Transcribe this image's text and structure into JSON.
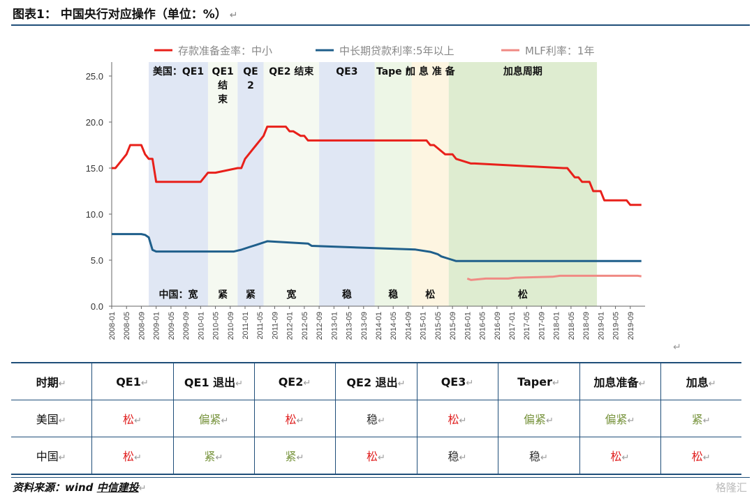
{
  "title": "图表1： 中国央行对应操作（单位：%）",
  "return_mark": "↵",
  "legend": [
    {
      "label": "存款准备金率：中小",
      "color": "#e8201a"
    },
    {
      "label": "中长期贷款利率:5年以上",
      "color": "#1f5f8b"
    },
    {
      "label": "MLF利率：1年",
      "color": "#f08a84"
    }
  ],
  "chart_data": {
    "type": "line",
    "ylim": [
      0,
      25
    ],
    "yticks": [
      "0.0",
      "5.0",
      "10.0",
      "15.0",
      "20.0",
      "25.0"
    ],
    "xticks": [
      "2008-01",
      "2008-05",
      "2008-09",
      "2009-01",
      "2009-05",
      "2009-09",
      "2010-01",
      "2010-05",
      "2010-09",
      "2011-01",
      "2011-05",
      "2011-09",
      "2012-01",
      "2012-05",
      "2012-09",
      "2013-01",
      "2013-05",
      "2013-09",
      "2014-01",
      "2014-05",
      "2014-09",
      "2015-01",
      "2015-05",
      "2015-09",
      "2016-01",
      "2016-05",
      "2016-09",
      "2017-01",
      "2017-05",
      "2017-09",
      "2018-01",
      "2018-05",
      "2018-09",
      "2019-01",
      "2019-05",
      "2019-09"
    ],
    "x_start": "2008-01",
    "x_end": "2019-12",
    "periods": [
      {
        "start": "2008-11",
        "end": "2010-03",
        "label_top": "美国：QE1",
        "label_bottom": "中国：宽",
        "color": "#dbe3f2"
      },
      {
        "start": "2010-03",
        "end": "2010-11",
        "label_top": "QE1 结 束",
        "label_bottom": "紧",
        "color": "#f3f8ee"
      },
      {
        "start": "2010-11",
        "end": "2011-06",
        "label_top": "QE 2",
        "label_bottom": "紧",
        "color": "#dbe3f2"
      },
      {
        "start": "2011-06",
        "end": "2012-09",
        "label_top": "QE2 结束",
        "label_bottom": "宽",
        "color": "#f3f8ee"
      },
      {
        "start": "2012-09",
        "end": "2013-12",
        "label_top": "QE3",
        "label_bottom": "稳",
        "color": "#dbe3f2"
      },
      {
        "start": "2013-12",
        "end": "2014-10",
        "label_top": "Tape r",
        "label_bottom": "稳",
        "color": "#eaf5e2"
      },
      {
        "start": "2014-10",
        "end": "2015-08",
        "label_top": "加 息 准 备",
        "label_bottom": "松",
        "color": "#fdf3dc"
      },
      {
        "start": "2015-08",
        "end": "2018-12",
        "label_top": "加息周期",
        "label_bottom": "松",
        "color": "#d8e9c8"
      }
    ],
    "series": [
      {
        "name": "存款准备金率：中小",
        "color": "#e8201a",
        "x": [
          "2008-01",
          "2008-02",
          "2008-03",
          "2008-04",
          "2008-05",
          "2008-06",
          "2008-07",
          "2008-08",
          "2008-09",
          "2008-10",
          "2008-11",
          "2008-12",
          "2009-01",
          "2010-01",
          "2010-02",
          "2010-03",
          "2010-05",
          "2010-11",
          "2010-12",
          "2011-01",
          "2011-02",
          "2011-03",
          "2011-04",
          "2011-05",
          "2011-06",
          "2011-07",
          "2011-11",
          "2011-12",
          "2012-01",
          "2012-02",
          "2012-04",
          "2012-05",
          "2012-06",
          "2015-01",
          "2015-02",
          "2015-03",
          "2015-04",
          "2015-07",
          "2015-08",
          "2015-09",
          "2015-10",
          "2016-02",
          "2016-03",
          "2018-03",
          "2018-04",
          "2018-06",
          "2018-07",
          "2018-08",
          "2018-10",
          "2018-11",
          "2019-01",
          "2019-02",
          "2019-08",
          "2019-09",
          "2019-12"
        ],
        "y": [
          15,
          15,
          15.5,
          16,
          16.5,
          17.5,
          17.5,
          17.5,
          17.5,
          16.5,
          16,
          16,
          13.5,
          13.5,
          14,
          14.5,
          14.5,
          15,
          15,
          16,
          16.5,
          17,
          17.5,
          18,
          18.5,
          19.5,
          19.5,
          19.5,
          19,
          19,
          18.5,
          18.5,
          18,
          18,
          18,
          17.5,
          17.5,
          16.5,
          16.5,
          16.5,
          16,
          15.5,
          15.5,
          15,
          15,
          14,
          14,
          13.5,
          13.5,
          12.5,
          12.5,
          11.5,
          11.5,
          11,
          11
        ]
      },
      {
        "name": "中长期贷款利率:5年以上",
        "color": "#1f5f8b",
        "x": [
          "2008-01",
          "2008-09",
          "2008-10",
          "2008-11",
          "2008-12",
          "2009-01",
          "2010-10",
          "2010-12",
          "2011-02",
          "2011-04",
          "2011-07",
          "2012-06",
          "2012-07",
          "2014-11",
          "2015-03",
          "2015-05",
          "2015-06",
          "2015-08",
          "2015-10",
          "2019-12"
        ],
        "y": [
          7.83,
          7.83,
          7.74,
          7.47,
          6.12,
          5.94,
          5.94,
          6.14,
          6.4,
          6.65,
          7.05,
          6.8,
          6.55,
          6.15,
          5.9,
          5.65,
          5.4,
          5.15,
          4.9,
          4.9
        ]
      },
      {
        "name": "MLF利率：1年",
        "color": "#f08a84",
        "x": [
          "2016-01",
          "2016-02",
          "2016-06",
          "2016-12",
          "2017-02",
          "2017-12",
          "2018-02",
          "2019-11",
          "2019-12"
        ],
        "y": [
          3.0,
          2.85,
          3.0,
          3.0,
          3.1,
          3.2,
          3.3,
          3.3,
          3.25
        ]
      }
    ]
  },
  "table": {
    "header": [
      "时期",
      "QE1",
      "QE1 退出",
      "QE2",
      "QE2 退出",
      "QE3",
      "Taper",
      "加息准备",
      "加息"
    ],
    "rows": [
      {
        "cells": [
          "美国",
          "松",
          "偏紧",
          "松",
          "稳",
          "松",
          "偏紧",
          "偏紧",
          "紧"
        ]
      },
      {
        "cells": [
          "中国",
          "松",
          "紧",
          "紧",
          "松",
          "稳",
          "稳",
          "松",
          "松"
        ]
      }
    ]
  },
  "source": {
    "prefix": "资料来源：wind ",
    "signature": "中信建投"
  },
  "watermark": "格隆汇"
}
